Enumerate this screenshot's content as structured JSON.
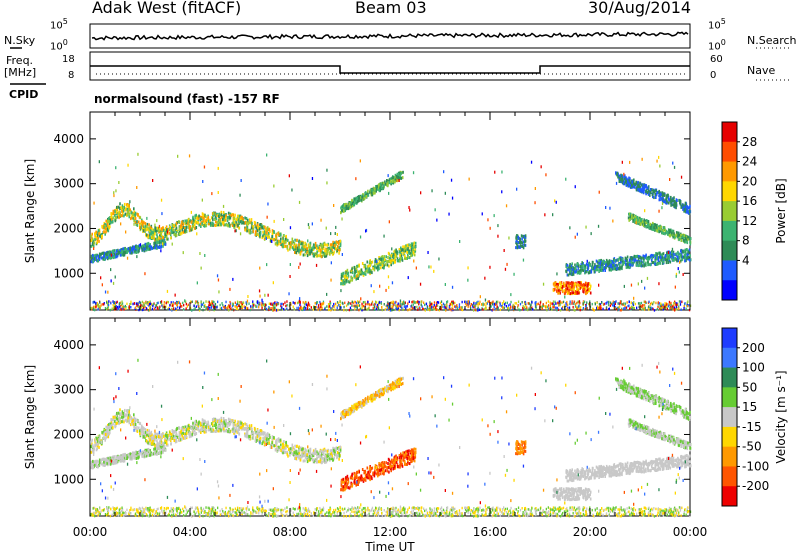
{
  "header": {
    "station": "Adak West (fitACF)",
    "beam": "Beam 03",
    "date": "30/Aug/2014"
  },
  "top_panels": {
    "nsky_label": "N.Sky",
    "nsearch_label": "N.Search",
    "noise_ticks": [
      "10^5",
      "10^0"
    ],
    "freq_label": "Freq.",
    "freq_unit": "[MHz]",
    "freq_ticks": [
      "18",
      "8"
    ],
    "nave_label": "Nave",
    "nave_ticks": [
      "60",
      "0"
    ],
    "cpid_label": "CPID",
    "cpid_text": "normalsound (fast) -157 RF"
  },
  "chart_data": [
    {
      "type": "heatmap",
      "name": "power",
      "ylabel": "Slant Range [km]",
      "yticks": [
        1000,
        2000,
        3000,
        4000
      ],
      "ylim": [
        180,
        4600
      ],
      "xlim": [
        0,
        24
      ],
      "colorbar": {
        "label": "Power [dB]",
        "ticks": [
          "28",
          "24",
          "20",
          "16",
          "12",
          "8",
          "4"
        ],
        "colors": [
          "#e60000",
          "#ff4d00",
          "#ff9900",
          "#ffd700",
          "#99cc33",
          "#3cb371",
          "#2e8b57",
          "#1e5bff",
          "#0000ff"
        ]
      }
    },
    {
      "type": "heatmap",
      "name": "velocity",
      "ylabel": "Slant Range [km]",
      "xlabel": "Time UT",
      "xticks": [
        "00:00",
        "04:00",
        "08:00",
        "12:00",
        "16:00",
        "20:00",
        "00:00"
      ],
      "yticks": [
        1000,
        2000,
        3000,
        4000
      ],
      "ylim": [
        180,
        4600
      ],
      "xlim": [
        0,
        24
      ],
      "colorbar": {
        "label": "Velocity [m s⁻¹]",
        "ticks": [
          "200",
          "100",
          "50",
          "15",
          "-15",
          "-50",
          "-100",
          "-200"
        ],
        "colors": [
          "#1e3cff",
          "#3c78ff",
          "#2e8b57",
          "#66cc33",
          "#c8c8c8",
          "#ffd700",
          "#ff9900",
          "#ff5500",
          "#ee0000"
        ]
      }
    }
  ]
}
